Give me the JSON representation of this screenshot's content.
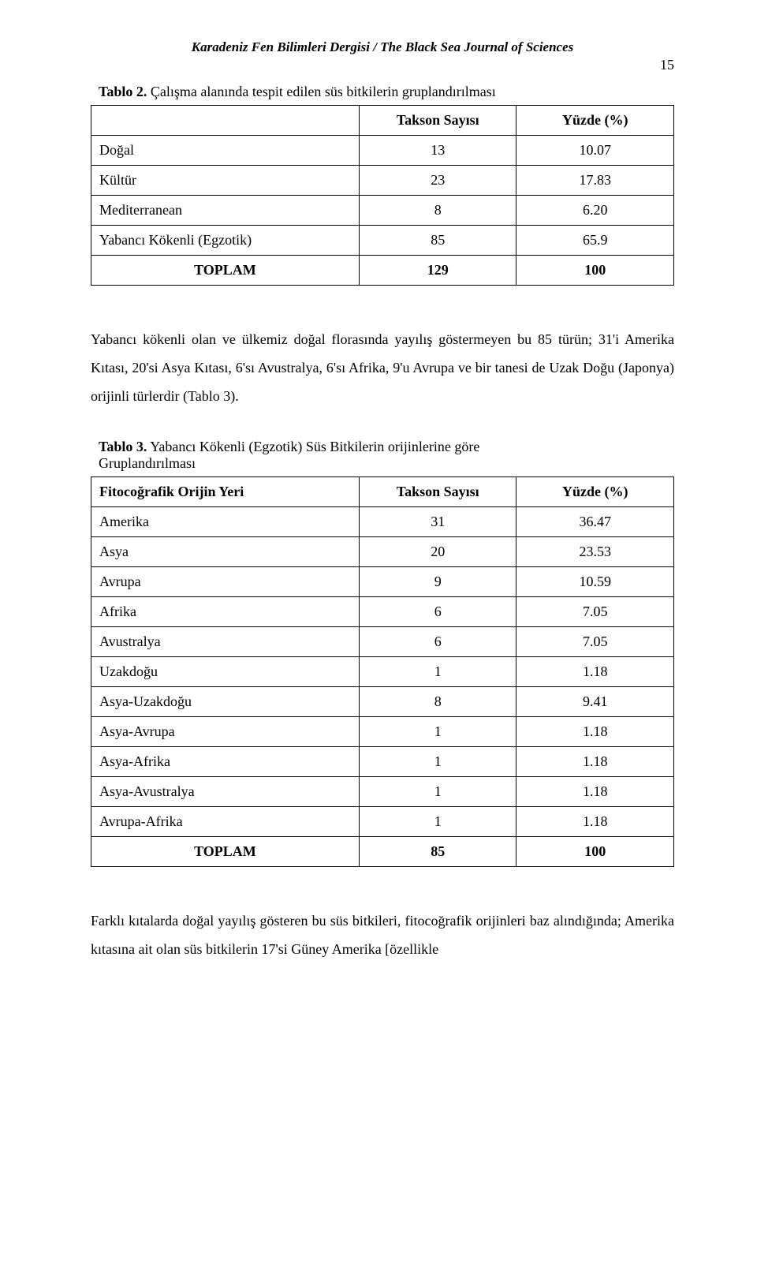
{
  "runningHead": "Karadeniz Fen Bilimleri Dergisi / The Black Sea Journal of Sciences",
  "pageNumber": "15",
  "table2": {
    "captionBold": "Tablo 2.",
    "captionRest": " Çalışma alanında tespit edilen süs bitkilerin gruplandırılması",
    "headers": {
      "label": "",
      "takson": "Takson Sayısı",
      "yuzde": "Yüzde (%)"
    },
    "rows": [
      {
        "label": "Doğal",
        "takson": "13",
        "yuzde": "10.07"
      },
      {
        "label": "Kültür",
        "takson": "23",
        "yuzde": "17.83"
      },
      {
        "label": "Mediterranean",
        "takson": "8",
        "yuzde": "6.20"
      },
      {
        "label": "Yabancı Kökenli (Egzotik)",
        "takson": "85",
        "yuzde": "65.9"
      }
    ],
    "total": {
      "label": "TOPLAM",
      "takson": "129",
      "yuzde": "100"
    }
  },
  "paragraph1": "Yabancı kökenli olan ve ülkemiz doğal florasında yayılış göstermeyen bu 85 türün; 31'i Amerika Kıtası, 20'si Asya Kıtası, 6'sı Avustralya, 6'sı Afrika, 9'u Avrupa ve bir tanesi de Uzak Doğu (Japonya) orijinli türlerdir (Tablo 3).",
  "table3": {
    "captionBold": "Tablo 3.",
    "captionRest": " Yabancı Kökenli (Egzotik) Süs Bitkilerin orijinlerine göre Gruplandırılması",
    "headers": {
      "label": "Fitocoğrafik Orijin Yeri",
      "takson": "Takson Sayısı",
      "yuzde": "Yüzde (%)"
    },
    "rows": [
      {
        "label": "Amerika",
        "takson": "31",
        "yuzde": "36.47"
      },
      {
        "label": "Asya",
        "takson": "20",
        "yuzde": "23.53"
      },
      {
        "label": "Avrupa",
        "takson": "9",
        "yuzde": "10.59"
      },
      {
        "label": "Afrika",
        "takson": "6",
        "yuzde": "7.05"
      },
      {
        "label": "Avustralya",
        "takson": "6",
        "yuzde": "7.05"
      },
      {
        "label": "Uzakdoğu",
        "takson": "1",
        "yuzde": "1.18"
      },
      {
        "label": "Asya-Uzakdoğu",
        "takson": "8",
        "yuzde": "9.41"
      },
      {
        "label": "Asya-Avrupa",
        "takson": "1",
        "yuzde": "1.18"
      },
      {
        "label": "Asya-Afrika",
        "takson": "1",
        "yuzde": "1.18"
      },
      {
        "label": "Asya-Avustralya",
        "takson": "1",
        "yuzde": "1.18"
      },
      {
        "label": "Avrupa-Afrika",
        "takson": "1",
        "yuzde": "1.18"
      }
    ],
    "total": {
      "label": "TOPLAM",
      "takson": "85",
      "yuzde": "100"
    }
  },
  "paragraph2": "Farklı kıtalarda doğal yayılış gösteren bu süs bitkileri, fitocoğrafik orijinleri baz alındığında; Amerika kıtasına ait olan süs bitkilerin 17'si Güney Amerika [özellikle"
}
